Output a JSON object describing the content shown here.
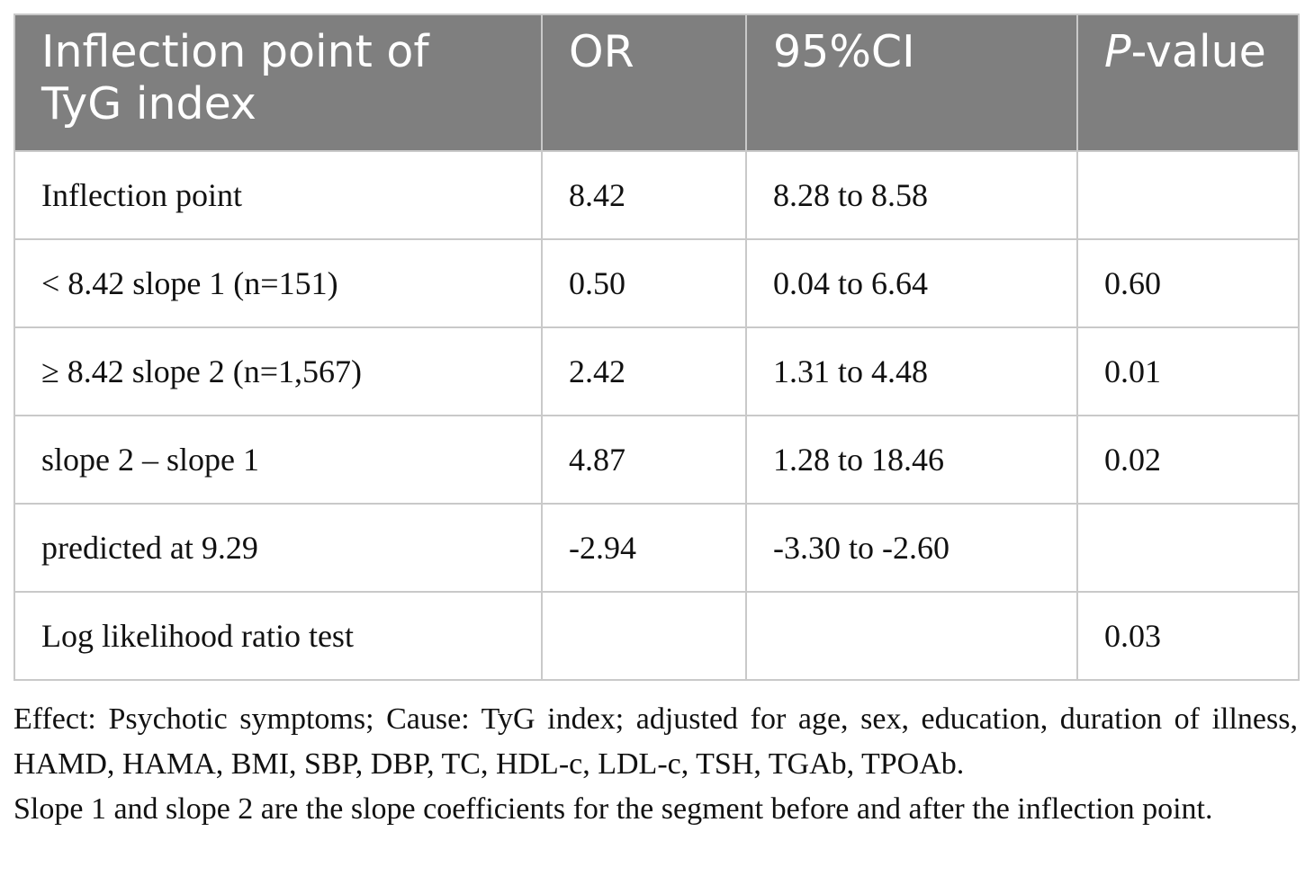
{
  "table": {
    "headers": {
      "col1": "Inflection point of TyG index",
      "col2": "OR",
      "col3": "95%CI",
      "col4_italic": "P",
      "col4_rest": "-value"
    },
    "rows": [
      {
        "label": "Inflection point",
        "or": "8.42",
        "ci": "8.28 to 8.58",
        "p": ""
      },
      {
        "label": "< 8.42 slope 1 (n=151)",
        "or": "0.50",
        "ci": "0.04 to 6.64",
        "p": "0.60"
      },
      {
        "label": "≥ 8.42 slope 2 (n=1,567)",
        "or": "2.42",
        "ci": "1.31 to 4.48",
        "p": "0.01"
      },
      {
        "label": "slope 2 – slope 1",
        "or": "4.87",
        "ci": "1.28 to 18.46",
        "p": "0.02"
      },
      {
        "label": "predicted at 9.29",
        "or": "-2.94",
        "ci": "-3.30 to -2.60",
        "p": ""
      },
      {
        "label": "Log likelihood ratio test",
        "or": "",
        "ci": "",
        "p": "0.03"
      }
    ]
  },
  "notes": {
    "line1": "Effect: Psychotic symptoms; Cause: TyG index; adjusted for age, sex, education, duration of illness, HAMD, HAMA, BMI, SBP, DBP, TC, HDL-c, LDL-c, TSH, TGAb, TPOAb.",
    "line2": "Slope 1 and slope 2 are the slope coefficients for the segment before and after the inflection point."
  }
}
